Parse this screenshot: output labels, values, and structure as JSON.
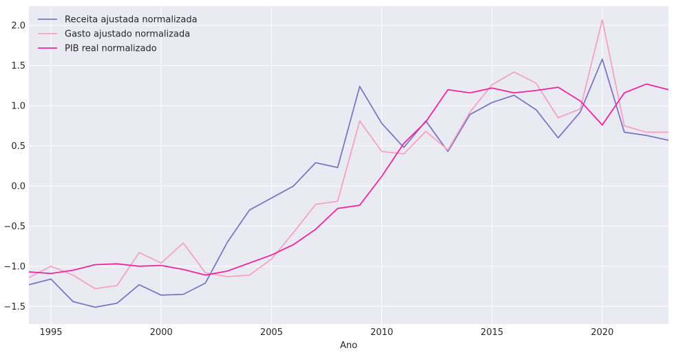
{
  "chart_data": {
    "type": "line",
    "title": "",
    "xlabel": "Ano",
    "ylabel": "",
    "xlim": [
      1994,
      2023
    ],
    "ylim": [
      -1.72,
      2.24
    ],
    "xticks": [
      1995,
      2000,
      2005,
      2010,
      2015,
      2020
    ],
    "yticks": [
      -1.5,
      -1.0,
      -0.5,
      0.0,
      0.5,
      1.0,
      1.5,
      2.0
    ],
    "ytick_labels": [
      "−1.5",
      "−1.0",
      "−0.5",
      "0.0",
      "0.5",
      "1.0",
      "1.5",
      "2.0"
    ],
    "grid": true,
    "legend_position": "upper-left",
    "x": [
      1994,
      1995,
      1996,
      1997,
      1998,
      1999,
      2000,
      2001,
      2002,
      2003,
      2004,
      2005,
      2006,
      2007,
      2008,
      2009,
      2010,
      2011,
      2012,
      2013,
      2014,
      2015,
      2016,
      2017,
      2018,
      2019,
      2020,
      2021,
      2022,
      2023
    ],
    "series": [
      {
        "name": "Receita ajustada normalizada",
        "color": "#7e74c4",
        "values": [
          -1.23,
          -1.16,
          -1.44,
          -1.51,
          -1.46,
          -1.23,
          -1.36,
          -1.35,
          -1.21,
          -0.7,
          -0.3,
          -0.15,
          0.0,
          0.29,
          0.23,
          1.24,
          0.78,
          0.48,
          0.81,
          0.43,
          0.89,
          1.04,
          1.13,
          0.95,
          0.6,
          0.92,
          1.58,
          0.67,
          0.63,
          0.57
        ]
      },
      {
        "name": "Gasto ajustado normalizada",
        "color": "#f5a3c3",
        "values": [
          -1.14,
          -1.0,
          -1.11,
          -1.28,
          -1.24,
          -0.83,
          -0.96,
          -0.71,
          -1.08,
          -1.13,
          -1.11,
          -0.91,
          -0.58,
          -0.23,
          -0.19,
          0.81,
          0.43,
          0.4,
          0.68,
          0.45,
          0.92,
          1.26,
          1.42,
          1.28,
          0.85,
          0.96,
          2.07,
          0.75,
          0.67,
          0.67
        ]
      },
      {
        "name": "PIB real normalizado",
        "color": "#f0259b",
        "values": [
          -1.07,
          -1.09,
          -1.05,
          -0.98,
          -0.97,
          -1.0,
          -0.99,
          -1.04,
          -1.11,
          -1.06,
          -0.96,
          -0.86,
          -0.73,
          -0.54,
          -0.28,
          -0.24,
          0.12,
          0.53,
          0.8,
          1.2,
          1.16,
          1.22,
          1.16,
          1.19,
          1.23,
          1.06,
          0.76,
          1.16,
          1.27,
          1.2
        ]
      }
    ]
  }
}
